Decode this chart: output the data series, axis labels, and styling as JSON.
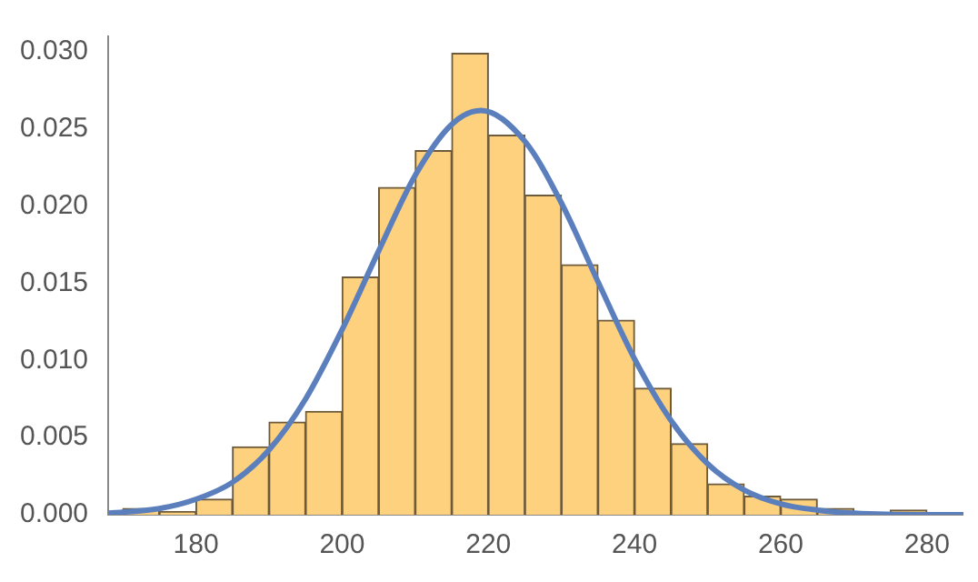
{
  "chart_data": {
    "type": "histogram",
    "xlim": [
      168,
      285
    ],
    "ylim": [
      0,
      0.031
    ],
    "xticks": [
      180,
      200,
      220,
      240,
      260,
      280
    ],
    "yticks": [
      {
        "value": 0,
        "label": "0.000"
      },
      {
        "value": 0.005,
        "label": "0.005"
      },
      {
        "value": 0.01,
        "label": "0.010"
      },
      {
        "value": 0.015,
        "label": "0.015"
      },
      {
        "value": 0.02,
        "label": "0.020"
      },
      {
        "value": 0.025,
        "label": "0.025"
      },
      {
        "value": 0.03,
        "label": "0.030"
      }
    ],
    "grid": false,
    "legend": false,
    "series": [
      {
        "type": "histogram",
        "color": "#fdd17e",
        "bins": [
          170,
          175,
          180,
          185,
          190,
          195,
          200,
          205,
          210,
          215,
          220,
          225,
          230,
          235,
          240,
          245,
          250,
          255,
          260,
          265,
          270,
          275,
          280
        ],
        "values": [
          0.0004,
          0.0002,
          0.001,
          0.0044,
          0.006,
          0.0067,
          0.0154,
          0.0212,
          0.0236,
          0.0299,
          0.0246,
          0.0207,
          0.0162,
          0.0126,
          0.0082,
          0.0046,
          0.002,
          0.0012,
          0.001,
          0.0004,
          0,
          0.0003
        ]
      },
      {
        "type": "line",
        "color": "#5b7fbd",
        "x": [
          168,
          175,
          180,
          185,
          190,
          195,
          200,
          205,
          210,
          215,
          219,
          225,
          230,
          235,
          240,
          245,
          250,
          255,
          260,
          265,
          270,
          280,
          285
        ],
        "values": [
          0.0001,
          0.0004,
          0.001,
          0.0021,
          0.0042,
          0.0075,
          0.012,
          0.0171,
          0.022,
          0.0253,
          0.0262,
          0.0242,
          0.0202,
          0.0151,
          0.0101,
          0.0061,
          0.0033,
          0.0016,
          0.0007,
          0.0003,
          0.0001,
          0,
          0
        ]
      }
    ]
  }
}
